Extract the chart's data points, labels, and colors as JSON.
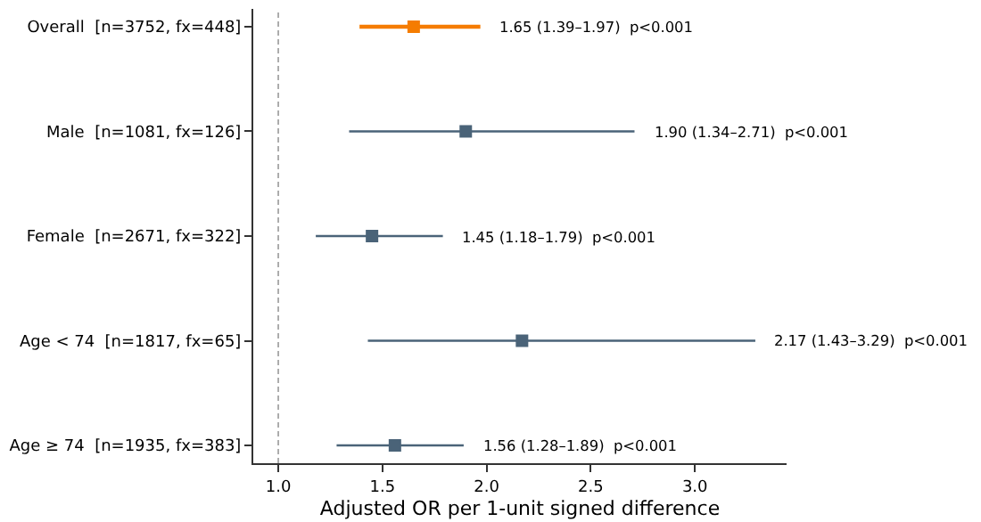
{
  "chart_data": {
    "type": "scatter",
    "orientation": "horizontal",
    "xlabel": "Adjusted OR per 1-unit signed difference",
    "categories": [
      "Overall  [n=3752, fx=448]",
      "Male  [n=1081, fx=126]",
      "Female  [n=2671, fx=322]",
      "Age < 74  [n=1817, fx=65]",
      "Age ≥ 74  [n=1935, fx=383]"
    ],
    "values": [
      1.65,
      1.9,
      1.45,
      2.17,
      1.56
    ],
    "errors": [
      [
        1.39,
        1.97
      ],
      [
        1.34,
        2.71
      ],
      [
        1.18,
        1.79
      ],
      [
        1.43,
        3.29
      ],
      [
        1.28,
        1.89
      ]
    ],
    "colors": [
      "#f57c00",
      "#4a6378",
      "#4a6378",
      "#4a6378",
      "#4a6378"
    ],
    "marker": "square",
    "xlim": [
      0.88,
      3.44
    ],
    "xticks": [
      {
        "value": 1,
        "label": "1.0"
      },
      {
        "value": 1.5,
        "label": "1.5"
      },
      {
        "value": 2,
        "label": "2.0"
      },
      {
        "value": 2.5,
        "label": "2.5"
      },
      {
        "value": 3,
        "label": "3.0"
      }
    ],
    "ref_lines": [
      {
        "axis": "x",
        "value": 1,
        "color": "#999999",
        "line_style": "dashed"
      }
    ],
    "annotations": [
      "1.65 (1.39–1.97)  p<0.001",
      "1.90 (1.34–2.71)  p<0.001",
      "1.45 (1.18–1.79)  p<0.001",
      "2.17 (1.43–3.29)  p<0.001",
      "1.56 (1.28–1.89)  p<0.001"
    ],
    "grid": false,
    "legend": false
  }
}
